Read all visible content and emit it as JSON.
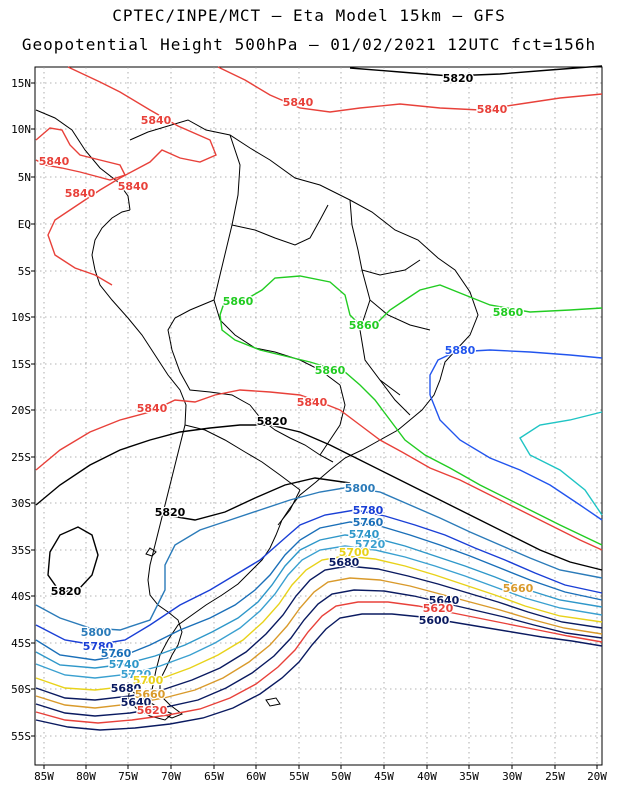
{
  "title_line1": "CPTEC/INPE/MCT –  Eta Model 15km – GFS",
  "title_line2": "Geopotential Height 500hPa – 01/02/2021 12UTC fct=156h",
  "lat_ticks": [
    "15N",
    "10N",
    "5N",
    "EQ",
    "5S",
    "10S",
    "15S",
    "20S",
    "25S",
    "30S",
    "35S",
    "40S",
    "45S",
    "50S",
    "55S"
  ],
  "lon_ticks": [
    "85W",
    "80W",
    "75W",
    "70W",
    "65W",
    "60W",
    "55W",
    "50W",
    "45W",
    "40W",
    "35W",
    "30W",
    "25W",
    "20W"
  ],
  "contour_labels": [
    {
      "text": "5820",
      "color": "#000000"
    },
    {
      "text": "5840",
      "color": "#e8413a"
    },
    {
      "text": "5840",
      "color": "#e8413a"
    },
    {
      "text": "5840",
      "color": "#e8413a"
    },
    {
      "text": "5840",
      "color": "#e8413a"
    },
    {
      "text": "5840",
      "color": "#e8413a"
    },
    {
      "text": "5840",
      "color": "#e8413a"
    },
    {
      "text": "5840",
      "color": "#e8413a"
    },
    {
      "text": "5840",
      "color": "#e8413a"
    },
    {
      "text": "5860",
      "color": "#22cc22"
    },
    {
      "text": "5860",
      "color": "#22cc22"
    },
    {
      "text": "5860",
      "color": "#22cc22"
    },
    {
      "text": "5860",
      "color": "#22cc22"
    },
    {
      "text": "5880",
      "color": "#2255ee"
    },
    {
      "text": "5820",
      "color": "#000000"
    },
    {
      "text": "5820",
      "color": "#000000"
    },
    {
      "text": "5820",
      "color": "#000000"
    },
    {
      "text": "5800",
      "color": "#2b7bb9"
    },
    {
      "text": "5780",
      "color": "#1a3fd6"
    },
    {
      "text": "5760",
      "color": "#1a6fb8"
    },
    {
      "text": "5740",
      "color": "#2e97c9"
    },
    {
      "text": "5720",
      "color": "#3aa0d0"
    },
    {
      "text": "5700",
      "color": "#e8d21a"
    },
    {
      "text": "5680",
      "color": "#0a1a60"
    },
    {
      "text": "5660",
      "color": "#d99a2b"
    },
    {
      "text": "5640",
      "color": "#0a1a60"
    },
    {
      "text": "5620",
      "color": "#e8413a"
    },
    {
      "text": "5600",
      "color": "#0a1a60"
    },
    {
      "text": "5800",
      "color": "#2b7bb9"
    },
    {
      "text": "5780",
      "color": "#1a3fd6"
    },
    {
      "text": "5760",
      "color": "#1a6fb8"
    },
    {
      "text": "5740",
      "color": "#2e97c9"
    },
    {
      "text": "5720",
      "color": "#3aa0d0"
    },
    {
      "text": "5700",
      "color": "#e8d21a"
    },
    {
      "text": "5680",
      "color": "#0a1a60"
    },
    {
      "text": "5660",
      "color": "#d99a2b"
    },
    {
      "text": "5640",
      "color": "#0a1a60"
    },
    {
      "text": "5620",
      "color": "#e8413a"
    }
  ]
}
